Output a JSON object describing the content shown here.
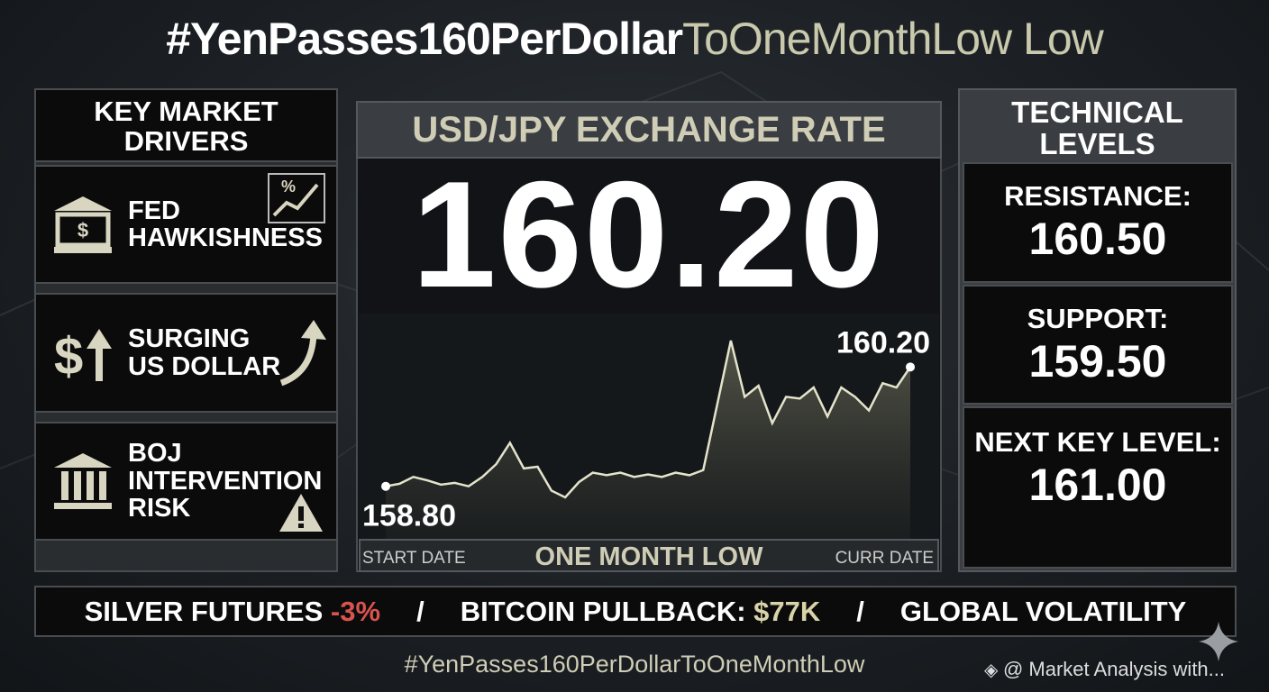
{
  "title": {
    "main": "#YenPasses160PerDollar",
    "tail": "ToOneMonthLow Low"
  },
  "drivers": {
    "heading": [
      "KEY MARKET",
      "DRIVERS"
    ],
    "items": [
      [
        "FED",
        "HAWKISHNESS"
      ],
      [
        "SURGING",
        "US DOLLAR"
      ],
      [
        "BOJ",
        "INTERVENTION",
        "RISK"
      ]
    ]
  },
  "center": {
    "heading": "USD/JPY EXCHANGE RATE",
    "rate": "160.20",
    "caption": "ONE MONTH LOW"
  },
  "chart_data": {
    "type": "line",
    "color": "#e4e4cc",
    "categories": [
      "START DATE",
      null,
      null,
      null,
      null,
      null,
      null,
      null,
      null,
      null,
      null,
      null,
      null,
      null,
      null,
      null,
      null,
      null,
      null,
      null,
      null,
      null,
      null,
      null,
      null,
      null,
      null,
      null,
      null,
      null,
      null,
      null,
      null,
      null,
      null,
      null,
      null,
      null,
      "CURR DATE"
    ],
    "values": [
      158.8,
      158.83,
      158.91,
      158.87,
      158.82,
      158.84,
      158.8,
      158.91,
      159.06,
      159.31,
      159.01,
      159.03,
      158.75,
      158.67,
      158.85,
      158.96,
      158.93,
      158.96,
      158.91,
      158.94,
      158.91,
      158.96,
      158.93,
      158.99,
      159.75,
      160.51,
      159.85,
      159.98,
      159.54,
      159.85,
      159.83,
      159.96,
      159.62,
      159.96,
      159.85,
      159.69,
      160.01,
      159.96,
      160.2
    ],
    "value_labels": [
      "158.80",
      null,
      null,
      null,
      null,
      null,
      null,
      null,
      null,
      null,
      null,
      null,
      null,
      null,
      null,
      null,
      null,
      null,
      null,
      null,
      null,
      null,
      null,
      null,
      null,
      null,
      null,
      null,
      null,
      null,
      null,
      null,
      null,
      null,
      null,
      null,
      null,
      null,
      "160.20"
    ]
  },
  "technical": {
    "heading": [
      "TECHNICAL",
      "LEVELS"
    ],
    "levels": [
      {
        "label": "RESISTANCE:",
        "value": "160.50"
      },
      {
        "label": "SUPPORT:",
        "value": "159.50"
      },
      {
        "label": "NEXT KEY LEVEL:",
        "value": "161.00"
      }
    ]
  },
  "ticker": [
    {
      "text": "SILVER FUTURES",
      "change": "-3%"
    },
    {
      "sep": "/"
    },
    {
      "text": "BITCOIN PULLBACK:",
      "change": "$77K"
    },
    {
      "sep": "/"
    },
    {
      "text": "GLOBAL VOLATILITY"
    }
  ],
  "footer": {
    "hashtag": "#YenPasses160PerDollarToOneMonthLow",
    "credit": "@ Market Analysis with..."
  }
}
